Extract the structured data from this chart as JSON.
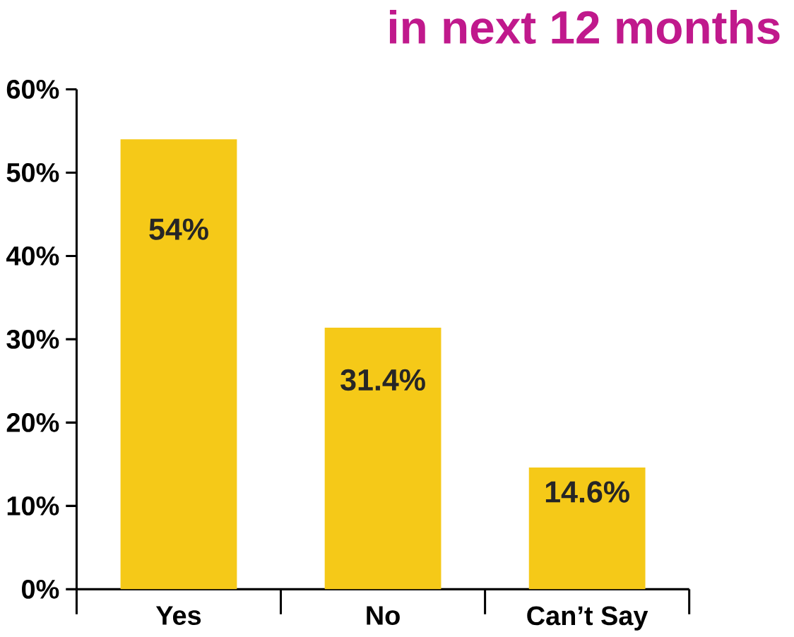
{
  "chart_data": {
    "type": "bar",
    "title": "in next 12 months",
    "categories": [
      "Yes",
      "No",
      "Can’t Say"
    ],
    "values": [
      54,
      31.4,
      14.6
    ],
    "value_labels": [
      "54%",
      "31.4%",
      "14.6%"
    ],
    "color": "#f5c918",
    "ylim": [
      0,
      60
    ],
    "yticks": [
      {
        "value": 0,
        "label": "0%"
      },
      {
        "value": 10,
        "label": "10%"
      },
      {
        "value": 20,
        "label": "20%"
      },
      {
        "value": 30,
        "label": "30%"
      },
      {
        "value": 40,
        "label": "40%"
      },
      {
        "value": 50,
        "label": "50%"
      },
      {
        "value": 60,
        "label": "60%"
      }
    ]
  }
}
